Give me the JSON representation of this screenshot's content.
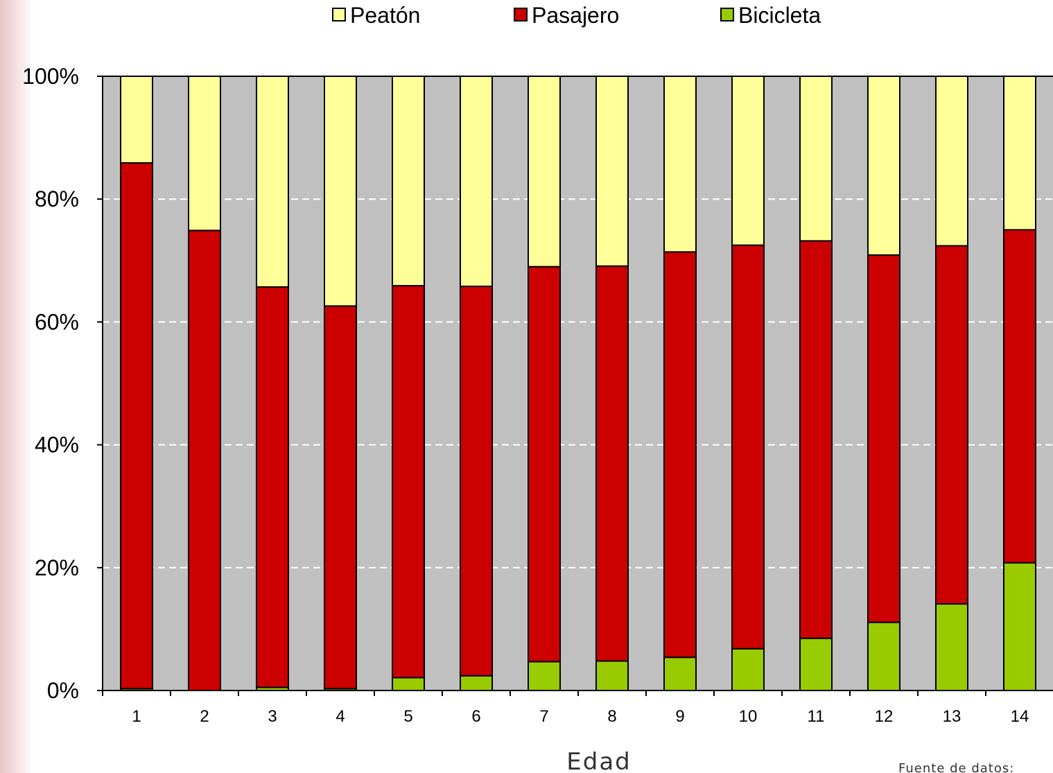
{
  "chart_data": {
    "type": "bar",
    "stacked": true,
    "percent_scale": true,
    "categories": [
      "1",
      "2",
      "3",
      "4",
      "5",
      "6",
      "7",
      "8",
      "9",
      "10",
      "11",
      "12",
      "13",
      "14"
    ],
    "series": [
      {
        "name": "Bicicleta",
        "color": "#99cc00",
        "values": [
          0.3,
          0.0,
          0.5,
          0.3,
          2.1,
          2.4,
          4.7,
          4.8,
          5.4,
          6.8,
          8.5,
          11.1,
          14.1,
          20.8
        ]
      },
      {
        "name": "Pasajero",
        "color": "#cc0000",
        "values": [
          85.6,
          74.9,
          65.2,
          62.3,
          63.8,
          63.4,
          64.3,
          64.3,
          66.0,
          65.7,
          64.7,
          59.8,
          58.3,
          54.2
        ]
      },
      {
        "name": "Peatón",
        "color": "#ffff99",
        "values": [
          14.1,
          25.1,
          34.3,
          37.4,
          34.1,
          34.2,
          31.0,
          30.9,
          28.6,
          27.5,
          26.8,
          29.1,
          27.6,
          25.0
        ]
      }
    ],
    "legend_order": [
      "Peatón",
      "Pasajero",
      "Bicicleta"
    ],
    "legend_position": "top",
    "y_ticks": [
      "0%",
      "20%",
      "40%",
      "60%",
      "80%",
      "100%"
    ],
    "ylim": [
      0,
      100
    ],
    "xlabel": "Edad",
    "ylabel": "",
    "title": "",
    "grid": "horizontal dashed",
    "plot_background": "#c0c0c0",
    "source_note": "Fuente de datos:"
  }
}
